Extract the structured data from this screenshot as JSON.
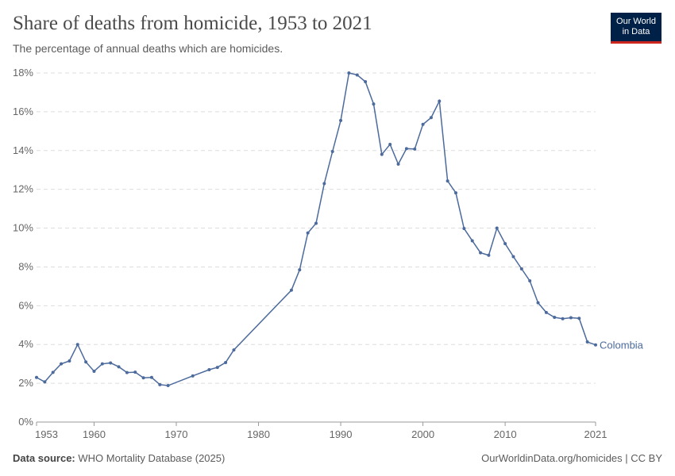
{
  "header": {
    "title": "Share of deaths from homicide, 1953 to 2021",
    "subtitle": "The percentage of annual deaths which are homicides.",
    "logo_line1": "Our World",
    "logo_line2": "in Data"
  },
  "footer": {
    "source_label": "Data source:",
    "source": "WHO Mortality Database (2025)",
    "link": "OurWorldinData.org/homicides | CC BY"
  },
  "chart_data": {
    "type": "line",
    "title": "Share of deaths from homicide, 1953 to 2021",
    "subtitle": "The percentage of annual deaths which are homicides.",
    "xlim": [
      1953,
      2021
    ],
    "ylim": [
      0,
      18
    ],
    "grid": "horizontal dashed",
    "legend": "inline-right",
    "x_ticks": [
      1953,
      1960,
      1970,
      1980,
      1990,
      2000,
      2010,
      2021
    ],
    "y_ticks": [
      "0%",
      "2%",
      "4%",
      "6%",
      "8%",
      "10%",
      "12%",
      "14%",
      "16%",
      "18%"
    ],
    "color": "#4c6a9c",
    "series": [
      {
        "name": "Colombia",
        "points": [
          [
            1953,
            2.3
          ],
          [
            1954,
            2.07
          ],
          [
            1955,
            2.56
          ],
          [
            1956,
            3.0
          ],
          [
            1957,
            3.15
          ],
          [
            1958,
            4.0
          ],
          [
            1959,
            3.1
          ],
          [
            1960,
            2.62
          ],
          [
            1961,
            3.0
          ],
          [
            1962,
            3.05
          ],
          [
            1963,
            2.85
          ],
          [
            1964,
            2.55
          ],
          [
            1965,
            2.57
          ],
          [
            1966,
            2.28
          ],
          [
            1967,
            2.3
          ],
          [
            1968,
            1.93
          ],
          [
            1969,
            1.88
          ],
          [
            1972,
            2.38
          ],
          [
            1974,
            2.7
          ],
          [
            1975,
            2.82
          ],
          [
            1976,
            3.07
          ],
          [
            1977,
            3.72
          ],
          [
            1984,
            6.8
          ],
          [
            1985,
            7.85
          ],
          [
            1986,
            9.75
          ],
          [
            1987,
            10.25
          ],
          [
            1988,
            12.3
          ],
          [
            1989,
            13.95
          ],
          [
            1990,
            15.55
          ],
          [
            1991,
            18.0
          ],
          [
            1992,
            17.9
          ],
          [
            1993,
            17.55
          ],
          [
            1994,
            16.4
          ],
          [
            1995,
            13.8
          ],
          [
            1996,
            14.32
          ],
          [
            1997,
            13.3
          ],
          [
            1998,
            14.1
          ],
          [
            1999,
            14.08
          ],
          [
            2000,
            15.35
          ],
          [
            2001,
            15.7
          ],
          [
            2002,
            16.55
          ],
          [
            2003,
            12.43
          ],
          [
            2004,
            11.82
          ],
          [
            2005,
            9.98
          ],
          [
            2006,
            9.35
          ],
          [
            2007,
            8.73
          ],
          [
            2008,
            8.6
          ],
          [
            2009,
            10.0
          ],
          [
            2010,
            9.2
          ],
          [
            2011,
            8.53
          ],
          [
            2012,
            7.9
          ],
          [
            2013,
            7.28
          ],
          [
            2014,
            6.15
          ],
          [
            2015,
            5.65
          ],
          [
            2016,
            5.4
          ],
          [
            2017,
            5.33
          ],
          [
            2018,
            5.38
          ],
          [
            2019,
            5.35
          ],
          [
            2020,
            4.13
          ],
          [
            2021,
            3.98
          ]
        ]
      }
    ]
  }
}
